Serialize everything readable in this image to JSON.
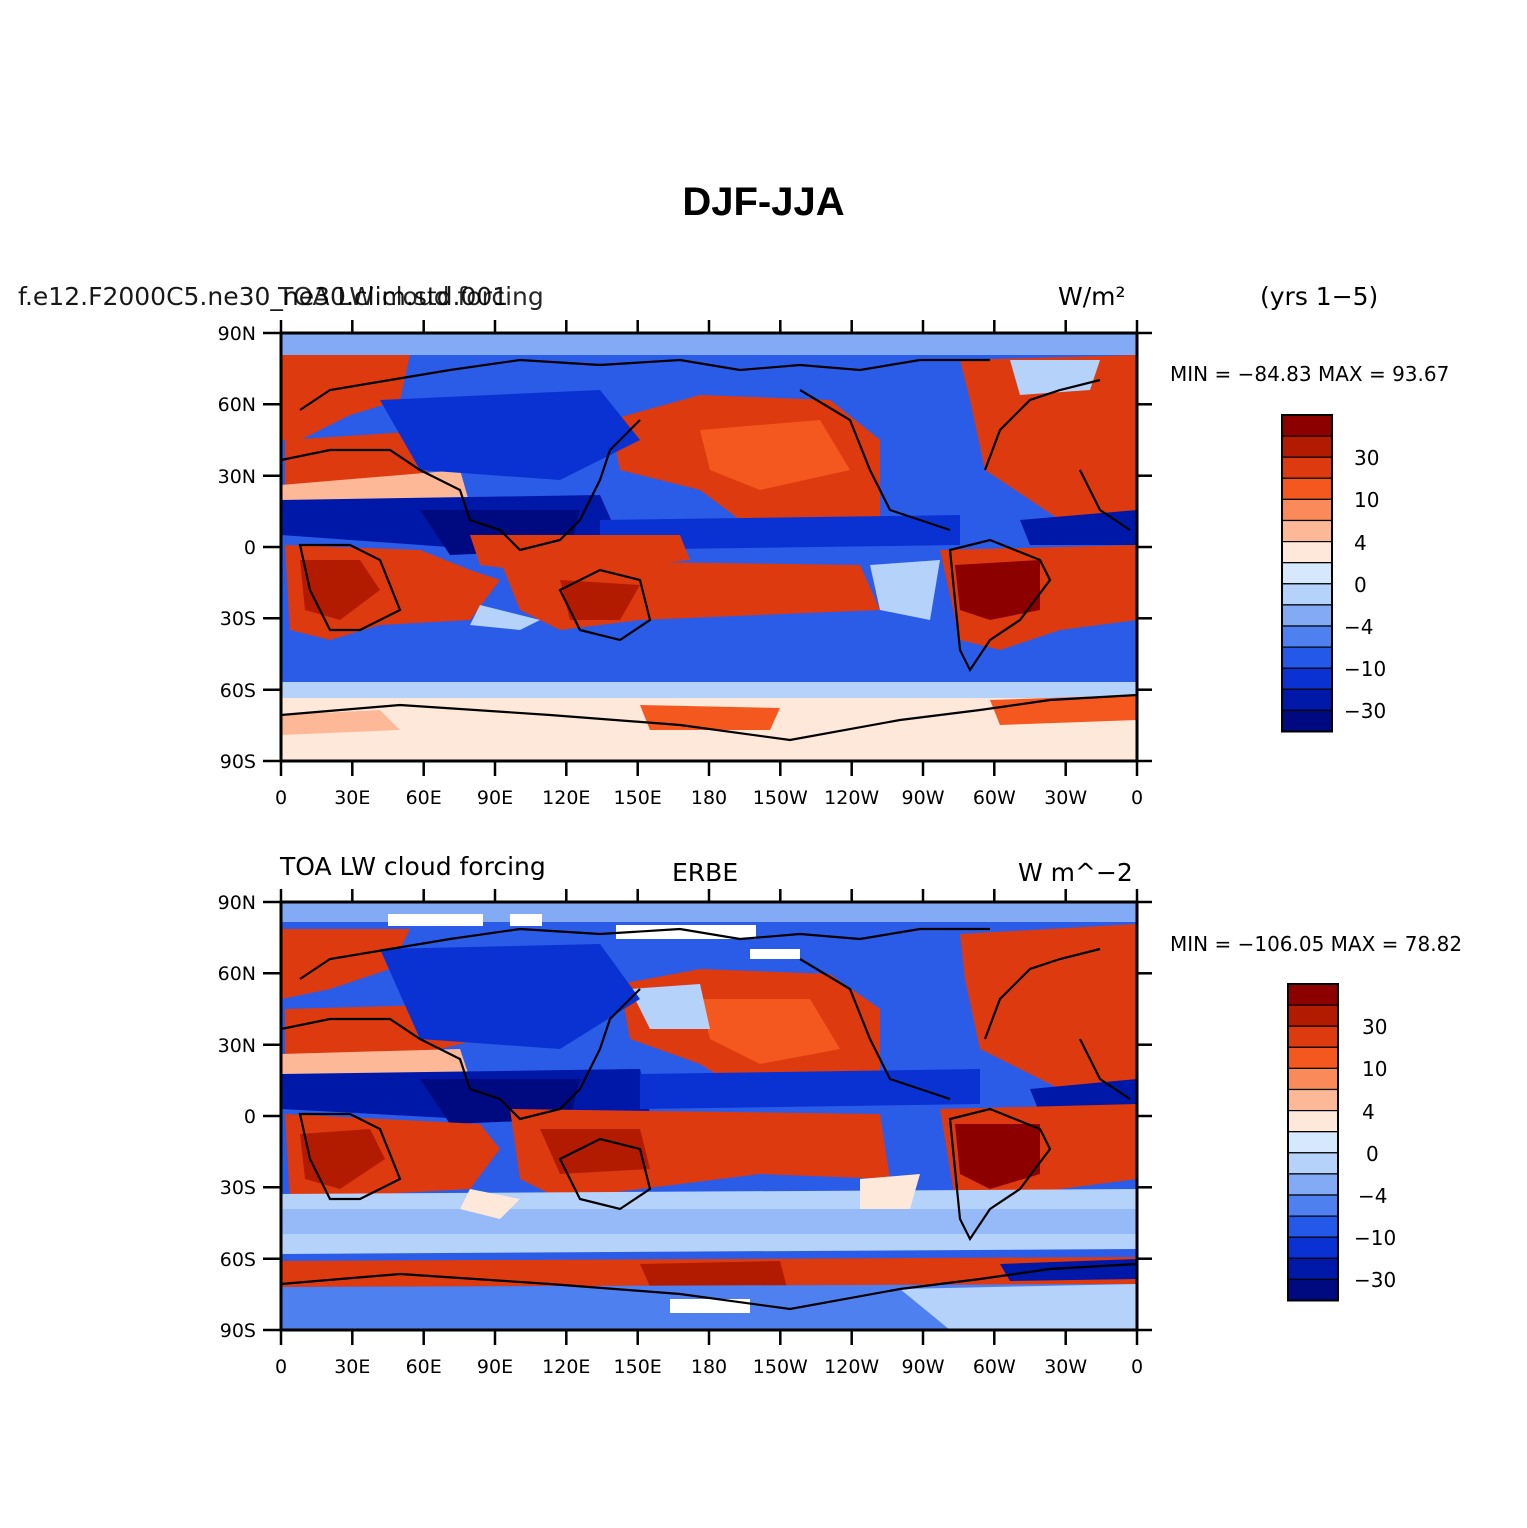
{
  "title": "DJF-JJA",
  "panels": [
    {
      "left_title": "f.e12.F2000C5.ne30_ne30.clim.std.001",
      "center_title": "TOA LW cloud forcing",
      "units": "W/m²",
      "extra": "(yrs 1−5)",
      "min_max": "MIN = −84.83 MAX =  93.67"
    },
    {
      "left_title": "TOA LW cloud forcing",
      "center_title": "ERBE",
      "units": "W m^−2",
      "extra": "",
      "min_max": "MIN = −106.05 MAX =  78.82"
    }
  ],
  "axes": {
    "lat_ticks": [
      "90N",
      "60N",
      "30N",
      "0",
      "30S",
      "60S",
      "90S"
    ],
    "lon_ticks": [
      "0",
      "30E",
      "60E",
      "90E",
      "120E",
      "150E",
      "180",
      "150W",
      "120W",
      "90W",
      "60W",
      "30W",
      "0"
    ]
  },
  "colorbar": {
    "colors": [
      "#8c0000",
      "#b31b00",
      "#de3a10",
      "#f5581e",
      "#fa8a5a",
      "#fdb898",
      "#fde8da",
      "#d6e8fd",
      "#b5d2fb",
      "#82aaf5",
      "#4f80f0",
      "#2458e8",
      "#0a32d2",
      "#0018a8",
      "#000a80"
    ],
    "labels": [
      "30",
      "10",
      "4",
      "0",
      "−4",
      "−10",
      "−30"
    ]
  }
}
